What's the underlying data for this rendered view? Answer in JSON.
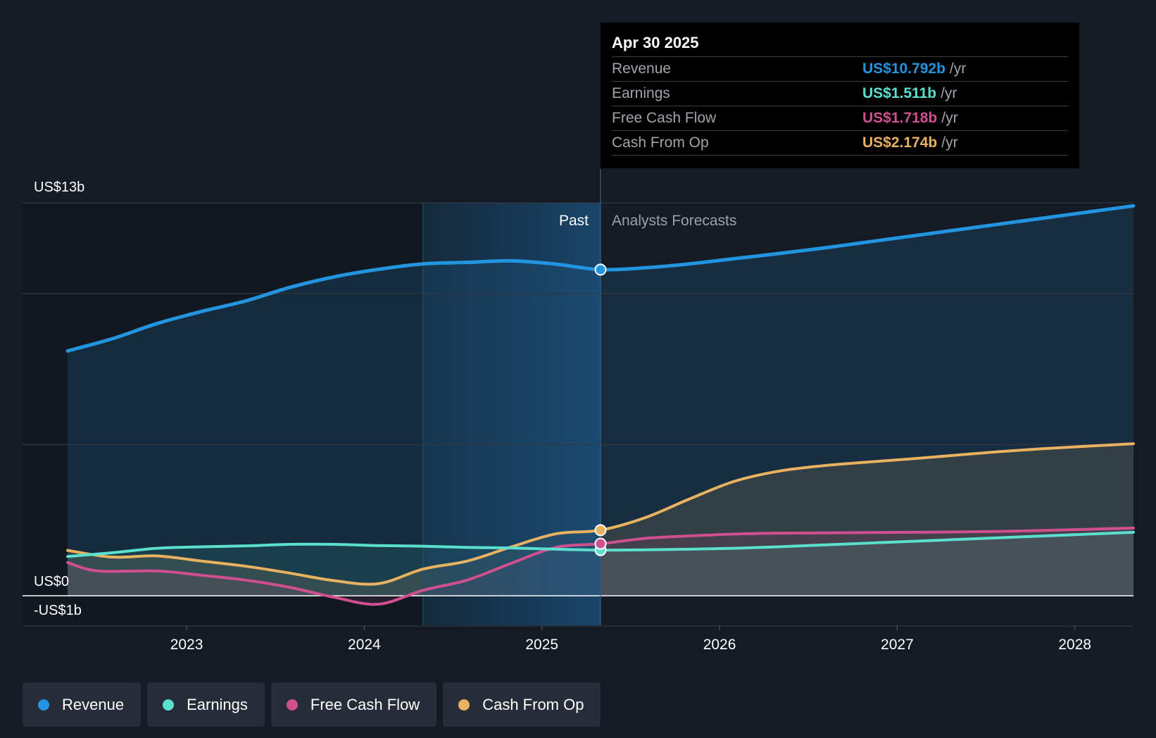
{
  "chart_data": {
    "type": "area",
    "ylim": [
      -1,
      13
    ],
    "y_ticks": [
      {
        "value": 13,
        "label": "US$13b"
      },
      {
        "value": 0,
        "label": "US$0"
      },
      {
        "value": -1,
        "label": "-US$1b"
      }
    ],
    "gridlines": [
      13,
      10,
      5,
      0,
      -1
    ],
    "x_ticks": [
      {
        "value": 2023.0,
        "label": "2023"
      },
      {
        "value": 2024.0,
        "label": "2024"
      },
      {
        "value": 2025.0,
        "label": "2025"
      },
      {
        "value": 2026.0,
        "label": "2026"
      },
      {
        "value": 2027.0,
        "label": "2027"
      },
      {
        "value": 2028.0,
        "label": "2028"
      }
    ],
    "xlim": [
      2021.9,
      2028.33
    ],
    "past_label": "Past",
    "forecast_label": "Analysts Forecasts",
    "past_end": 2025.33,
    "highlight_start": 2024.33,
    "series": [
      {
        "name": "Revenue",
        "color": "#2394df",
        "values": [
          [
            2022.33,
            8.1
          ],
          [
            2022.58,
            8.5
          ],
          [
            2022.83,
            9.0
          ],
          [
            2023.08,
            9.4
          ],
          [
            2023.33,
            9.75
          ],
          [
            2023.58,
            10.2
          ],
          [
            2023.83,
            10.55
          ],
          [
            2024.08,
            10.8
          ],
          [
            2024.33,
            10.98
          ],
          [
            2024.58,
            11.03
          ],
          [
            2024.83,
            11.08
          ],
          [
            2025.08,
            10.97
          ],
          [
            2025.33,
            10.79
          ],
          [
            2025.58,
            10.85
          ],
          [
            2025.83,
            10.98
          ],
          [
            2026.08,
            11.15
          ],
          [
            2026.33,
            11.32
          ],
          [
            2026.58,
            11.5
          ],
          [
            2026.83,
            11.7
          ],
          [
            2027.08,
            11.9
          ],
          [
            2027.33,
            12.1
          ],
          [
            2027.58,
            12.3
          ],
          [
            2027.83,
            12.5
          ],
          [
            2028.08,
            12.7
          ],
          [
            2028.33,
            12.9
          ]
        ]
      },
      {
        "name": "Earnings",
        "color": "#5be0cf",
        "values": [
          [
            2022.33,
            1.3
          ],
          [
            2022.58,
            1.42
          ],
          [
            2022.83,
            1.57
          ],
          [
            2023.08,
            1.62
          ],
          [
            2023.33,
            1.65
          ],
          [
            2023.58,
            1.7
          ],
          [
            2023.83,
            1.7
          ],
          [
            2024.08,
            1.66
          ],
          [
            2024.33,
            1.64
          ],
          [
            2024.58,
            1.6
          ],
          [
            2024.83,
            1.58
          ],
          [
            2025.08,
            1.54
          ],
          [
            2025.33,
            1.51
          ],
          [
            2025.58,
            1.52
          ],
          [
            2025.83,
            1.54
          ],
          [
            2026.08,
            1.57
          ],
          [
            2026.33,
            1.62
          ],
          [
            2026.58,
            1.68
          ],
          [
            2026.83,
            1.74
          ],
          [
            2027.08,
            1.8
          ],
          [
            2027.33,
            1.86
          ],
          [
            2027.58,
            1.92
          ],
          [
            2027.83,
            1.98
          ],
          [
            2028.08,
            2.04
          ],
          [
            2028.33,
            2.1
          ]
        ]
      },
      {
        "name": "Free Cash Flow",
        "color": "#d04f8f",
        "values": [
          [
            2022.33,
            1.1
          ],
          [
            2022.5,
            0.82
          ],
          [
            2022.83,
            0.82
          ],
          [
            2023.08,
            0.68
          ],
          [
            2023.33,
            0.52
          ],
          [
            2023.58,
            0.28
          ],
          [
            2023.83,
            -0.05
          ],
          [
            2024.08,
            -0.28
          ],
          [
            2024.33,
            0.18
          ],
          [
            2024.58,
            0.52
          ],
          [
            2024.83,
            1.08
          ],
          [
            2025.08,
            1.6
          ],
          [
            2025.33,
            1.72
          ],
          [
            2025.58,
            1.9
          ],
          [
            2025.83,
            1.98
          ],
          [
            2026.08,
            2.04
          ],
          [
            2026.33,
            2.07
          ],
          [
            2026.58,
            2.08
          ],
          [
            2026.83,
            2.09
          ],
          [
            2027.08,
            2.1
          ],
          [
            2027.33,
            2.11
          ],
          [
            2027.58,
            2.13
          ],
          [
            2027.83,
            2.16
          ],
          [
            2028.08,
            2.2
          ],
          [
            2028.33,
            2.24
          ]
        ]
      },
      {
        "name": "Cash From Op",
        "color": "#e9b260",
        "values": [
          [
            2022.33,
            1.5
          ],
          [
            2022.58,
            1.28
          ],
          [
            2022.83,
            1.32
          ],
          [
            2023.08,
            1.15
          ],
          [
            2023.33,
            0.98
          ],
          [
            2023.58,
            0.75
          ],
          [
            2023.83,
            0.5
          ],
          [
            2024.08,
            0.4
          ],
          [
            2024.33,
            0.88
          ],
          [
            2024.58,
            1.15
          ],
          [
            2024.83,
            1.62
          ],
          [
            2025.08,
            2.05
          ],
          [
            2025.33,
            2.17
          ],
          [
            2025.58,
            2.58
          ],
          [
            2025.83,
            3.2
          ],
          [
            2026.08,
            3.78
          ],
          [
            2026.33,
            4.12
          ],
          [
            2026.58,
            4.3
          ],
          [
            2026.83,
            4.42
          ],
          [
            2027.08,
            4.53
          ],
          [
            2027.33,
            4.65
          ],
          [
            2027.58,
            4.77
          ],
          [
            2027.83,
            4.87
          ],
          [
            2028.08,
            4.95
          ],
          [
            2028.33,
            5.03
          ]
        ]
      }
    ]
  },
  "tooltip": {
    "date": "Apr 30 2025",
    "unit": "/yr",
    "rows": [
      {
        "label": "Revenue",
        "value": "US$10.792b",
        "color": "#2394df"
      },
      {
        "label": "Earnings",
        "value": "US$1.511b",
        "color": "#5be0cf"
      },
      {
        "label": "Free Cash Flow",
        "value": "US$1.718b",
        "color": "#d04f8f"
      },
      {
        "label": "Cash From Op",
        "value": "US$2.174b",
        "color": "#e9b260"
      }
    ]
  },
  "legend": [
    {
      "label": "Revenue",
      "color": "#2394df"
    },
    {
      "label": "Earnings",
      "color": "#5be0cf"
    },
    {
      "label": "Free Cash Flow",
      "color": "#d04f8f"
    },
    {
      "label": "Cash From Op",
      "color": "#e9b260"
    }
  ]
}
